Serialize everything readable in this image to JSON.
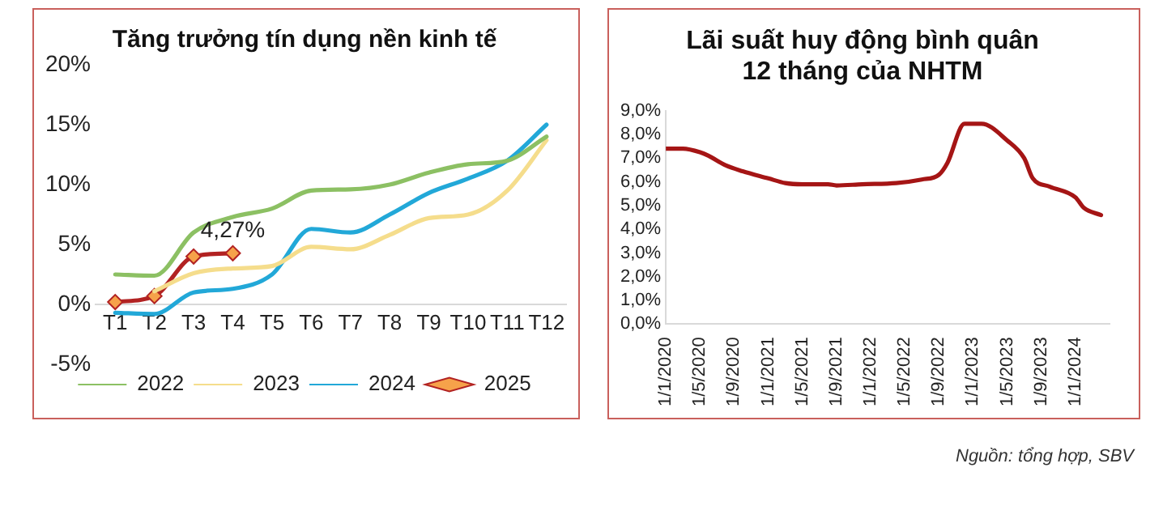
{
  "chart_data": [
    {
      "type": "line",
      "title": "Tăng trưởng tín dụng nền kinh tế",
      "categories": [
        "T1",
        "T2",
        "T3",
        "T4",
        "T5",
        "T6",
        "T7",
        "T8",
        "T9",
        "T10",
        "T11",
        "T12"
      ],
      "series": [
        {
          "name": "2022",
          "color": "#8cc063",
          "values": [
            2.5,
            2.4,
            6.0,
            7.3,
            8.0,
            9.5,
            9.6,
            10.0,
            11.0,
            11.7,
            12.0,
            14.0
          ]
        },
        {
          "name": "2023",
          "color": "#f5dd8c",
          "values": [
            null,
            1.1,
            2.6,
            3.0,
            3.2,
            4.8,
            4.6,
            5.8,
            7.2,
            7.5,
            9.5,
            13.7
          ]
        },
        {
          "name": "2024",
          "color": "#22a8d8",
          "values": [
            -0.7,
            -0.8,
            1.0,
            1.3,
            2.5,
            6.3,
            6.0,
            7.5,
            9.3,
            10.5,
            12.0,
            15.0
          ]
        },
        {
          "name": "2025",
          "color": "#b22222",
          "marker": "diamond",
          "values": [
            0.2,
            0.7,
            4.0,
            4.27,
            null,
            null,
            null,
            null,
            null,
            null,
            null,
            null
          ],
          "value_labels": [
            null,
            null,
            null,
            "4,27%",
            null,
            null,
            null,
            null,
            null,
            null,
            null,
            null
          ]
        }
      ],
      "ylim": [
        -5,
        20
      ],
      "yticks": [
        {
          "value": -5,
          "label": "-5%"
        },
        {
          "value": 0,
          "label": "0%"
        },
        {
          "value": 5,
          "label": "5%"
        },
        {
          "value": 10,
          "label": "10%"
        },
        {
          "value": 15,
          "label": "15%"
        },
        {
          "value": 20,
          "label": "20%"
        }
      ],
      "grid": false,
      "legend": "bottom",
      "marker": "none"
    },
    {
      "type": "line",
      "title": "Lãi suất huy động bình quân\n12 tháng của NHTM",
      "series": [
        {
          "color": "#a51515",
          "x": [
            "2020-01",
            "2020-03",
            "2020-05",
            "2020-06",
            "2020-08",
            "2020-10",
            "2021-01",
            "2021-03",
            "2021-05",
            "2021-08",
            "2021-09",
            "2021-12",
            "2022-04",
            "2022-07",
            "2022-09",
            "2022-10",
            "2022-12",
            "2023-02",
            "2023-05",
            "2023-07",
            "2023-08",
            "2023-10",
            "2024-01",
            "2024-02",
            "2024-04"
          ],
          "values": [
            7.4,
            7.4,
            7.25,
            7.1,
            6.7,
            6.45,
            6.15,
            5.95,
            5.9,
            5.9,
            5.85,
            5.9,
            5.95,
            6.1,
            6.3,
            6.8,
            8.45,
            8.45,
            7.75,
            7.0,
            6.15,
            5.8,
            5.35,
            4.9,
            4.6
          ]
        }
      ],
      "xlim": [
        "2020-01",
        "2024-05"
      ],
      "xticks": [
        {
          "value": "2020-01",
          "label": "1/1/2020"
        },
        {
          "value": "2020-05",
          "label": "1/5/2020"
        },
        {
          "value": "2020-09",
          "label": "1/9/2020"
        },
        {
          "value": "2021-01",
          "label": "1/1/2021"
        },
        {
          "value": "2021-05",
          "label": "1/5/2021"
        },
        {
          "value": "2021-09",
          "label": "1/9/2021"
        },
        {
          "value": "2022-01",
          "label": "1/1/2022"
        },
        {
          "value": "2022-05",
          "label": "1/5/2022"
        },
        {
          "value": "2022-09",
          "label": "1/9/2022"
        },
        {
          "value": "2023-01",
          "label": "1/1/2023"
        },
        {
          "value": "2023-05",
          "label": "1/5/2023"
        },
        {
          "value": "2023-09",
          "label": "1/9/2023"
        },
        {
          "value": "2024-01",
          "label": "1/1/2024"
        }
      ],
      "ylim": [
        0,
        9
      ],
      "yticks": [
        {
          "value": 0,
          "label": "0,0%"
        },
        {
          "value": 1,
          "label": "1,0%"
        },
        {
          "value": 2,
          "label": "2,0%"
        },
        {
          "value": 3,
          "label": "3,0%"
        },
        {
          "value": 4,
          "label": "4,0%"
        },
        {
          "value": 5,
          "label": "5,0%"
        },
        {
          "value": 6,
          "label": "6,0%"
        },
        {
          "value": 7,
          "label": "7,0%"
        },
        {
          "value": 8,
          "label": "8,0%"
        },
        {
          "value": 9,
          "label": "9,0%"
        }
      ],
      "grid": false,
      "legend": false,
      "annotations": [
        "Nguồn: tổng hợp, SBV"
      ]
    }
  ]
}
